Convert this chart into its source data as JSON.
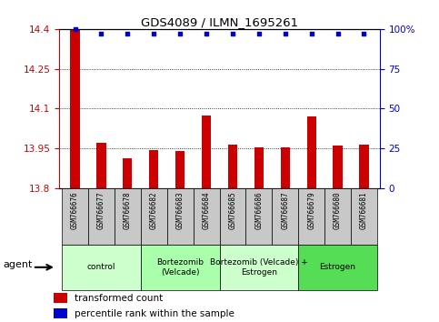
{
  "title": "GDS4089 / ILMN_1695261",
  "samples": [
    "GSM766676",
    "GSM766677",
    "GSM766678",
    "GSM766682",
    "GSM766683",
    "GSM766684",
    "GSM766685",
    "GSM766686",
    "GSM766687",
    "GSM766679",
    "GSM766680",
    "GSM766681"
  ],
  "bar_values": [
    14.4,
    13.97,
    13.915,
    13.945,
    13.94,
    14.075,
    13.965,
    13.955,
    13.955,
    14.07,
    13.96,
    13.965
  ],
  "percentile_values": [
    100,
    97,
    97,
    97,
    97,
    97,
    97,
    97,
    97,
    97,
    97,
    97
  ],
  "ylim": [
    13.8,
    14.4
  ],
  "yticks": [
    13.8,
    13.95,
    14.1,
    14.25,
    14.4
  ],
  "ytick_labels": [
    "13.8",
    "13.95",
    "14.1",
    "14.25",
    "14.4"
  ],
  "y2ticks": [
    0,
    25,
    50,
    75,
    100
  ],
  "y2tick_labels": [
    "0",
    "25",
    "50",
    "75",
    "100%"
  ],
  "bar_color": "#cc0000",
  "dot_color": "#0000cc",
  "groups": [
    {
      "label": "control",
      "start": 0,
      "end": 3,
      "color": "#ccffcc"
    },
    {
      "label": "Bortezomib\n(Velcade)",
      "start": 3,
      "end": 6,
      "color": "#aaffaa"
    },
    {
      "label": "Bortezomib (Velcade) +\nEstrogen",
      "start": 6,
      "end": 9,
      "color": "#ccffcc"
    },
    {
      "label": "Estrogen",
      "start": 9,
      "end": 12,
      "color": "#55dd55"
    }
  ],
  "xlabel": "agent",
  "legend_bar_label": "transformed count",
  "legend_dot_label": "percentile rank within the sample",
  "bar_color_hex": "#cc0000",
  "dot_color_hex": "#0000cc",
  "tick_color_left": "#cc0000",
  "tick_color_right": "#0000cc",
  "label_bg_color": "#c8c8c8",
  "bar_width": 0.35
}
